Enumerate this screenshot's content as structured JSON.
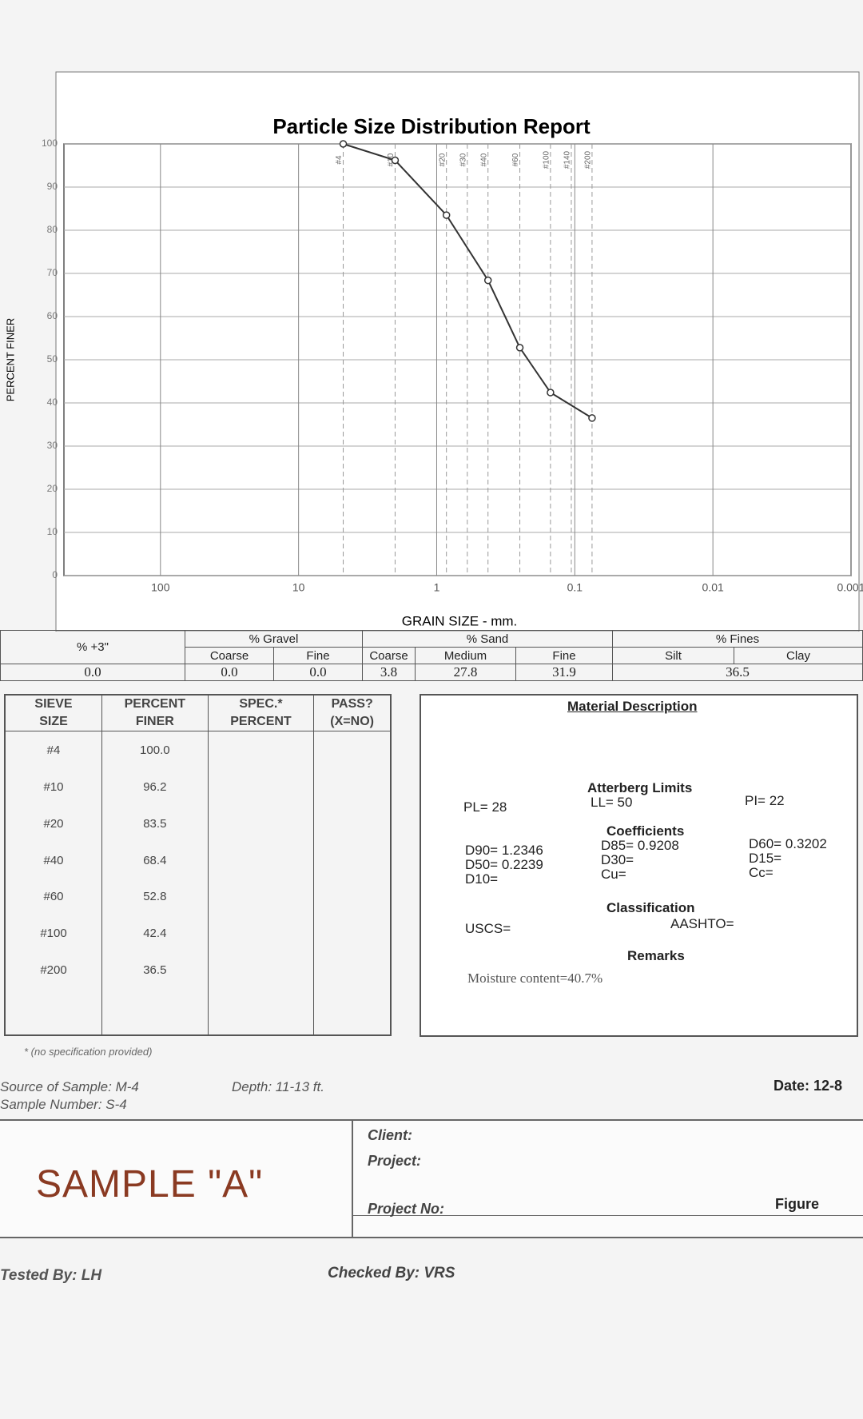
{
  "chart_data": {
    "type": "line",
    "title": "Particle Size Distribution Report",
    "x_label": "GRAIN SIZE - mm.",
    "y_label": "PERCENT FINER",
    "x": [
      4.75,
      2.0,
      0.85,
      0.425,
      0.25,
      0.15,
      0.075
    ],
    "sieves": [
      "#4",
      "#10",
      "#20",
      "#40",
      "#60",
      "#100",
      "#200"
    ],
    "values": [
      100,
      96.2,
      83.5,
      68.4,
      52.8,
      42.4,
      36.5
    ],
    "value_labels": [
      "100.0",
      "96.2",
      "83.5",
      "68.4",
      "52.8",
      "42.4",
      "36.5"
    ],
    "color": "#333333",
    "xlim": [
      500,
      0.001
    ],
    "ylim": [
      0,
      100
    ],
    "xticks": [
      100,
      10,
      1,
      0.1,
      0.01,
      0.001
    ],
    "yticks": [
      0,
      10,
      20,
      30,
      40,
      50,
      60,
      70,
      80,
      90,
      100
    ],
    "x_log": true,
    "grid": true,
    "top_ticks": [
      {
        "value": 4.75,
        "label": "#4"
      },
      {
        "value": 2.0,
        "label": "#10"
      },
      {
        "value": 0.85,
        "label": "#20"
      },
      {
        "value": 0.6,
        "label": "#30"
      },
      {
        "value": 0.425,
        "label": "#40"
      },
      {
        "value": 0.25,
        "label": "#60"
      },
      {
        "value": 0.15,
        "label": "#100"
      },
      {
        "value": 0.106,
        "label": "#140"
      },
      {
        "value": 0.075,
        "label": "#200"
      }
    ]
  },
  "fractions": {
    "plus3_header": "% +3\"",
    "gravel": "% Gravel",
    "sand": "% Sand",
    "fines": "% Fines",
    "coarse": "Coarse",
    "fine": "Fine",
    "medium": "Medium",
    "silt": "Silt",
    "clay": "Clay",
    "plus3": "0.0",
    "gravel_coarse": "0.0",
    "gravel_fine": "0.0",
    "sand_coarse": "3.8",
    "sand_medium": "27.8",
    "sand_fine": "31.9",
    "fines_value": "36.5"
  },
  "sieve_table": {
    "header1": [
      "SIEVE",
      "PERCENT",
      "SPEC.*",
      "PASS?"
    ],
    "header2": [
      "SIZE",
      "FINER",
      "PERCENT",
      "(X=NO)"
    ],
    "footnote": "* (no specification provided)"
  },
  "material": {
    "title": "Material Description",
    "atterberg": "Atterberg Limits",
    "pl": "PL= 28",
    "ll": "LL= 50",
    "pi": "PI= 22",
    "coefficients": "Coefficients",
    "d90": "D90= 1.2346",
    "d85": "D85= 0.9208",
    "d60": "D60= 0.3202",
    "d50": "D50= 0.2239",
    "d30": "D30=",
    "d15": "D15=",
    "d10": "D10=",
    "cu": "Cu=",
    "cc": "Cc=",
    "classification": "Classification",
    "uscs": "USCS=",
    "aashto": "AASHTO=",
    "remarks": "Remarks",
    "remark_text": "Moisture content=40.7%"
  },
  "info": {
    "source": "Source of Sample: M-4",
    "depth": "Depth: 11-13 ft.",
    "sample_number": "Sample Number: S-4",
    "date": "Date: 12-8",
    "sample": "SAMPLE \"A\"",
    "client": "Client:",
    "project": "Project:",
    "project_no": "Project No:",
    "figure": "Figure",
    "tested_by": "Tested By: LH",
    "checked_by": "Checked By: VRS"
  }
}
